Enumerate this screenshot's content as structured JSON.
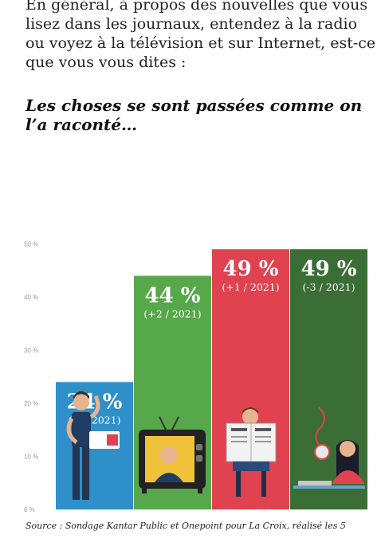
{
  "header": {
    "question": "En général, à propos des nouvelles que vous lisez dans les journaux, entendez à la radio ou voyez à la télévision et sur Internet, est-ce que vous vous dites :",
    "statement": "Les choses se sont passées comme on l’a raconté…"
  },
  "chart_data": {
    "type": "bar",
    "categories": [
      "Radio",
      "Télévision",
      "Journaux",
      "Internet"
    ],
    "values": [
      24,
      44,
      49,
      49
    ],
    "value_labels": [
      "24 %",
      "44 %",
      "49 %",
      "49 %"
    ],
    "change_labels": [
      "(-4 / 2021)",
      "(+2 / 2021)",
      "(+1 / 2021)",
      "(-3 / 2021)"
    ],
    "colors": [
      "#2f8fc9",
      "#57a84a",
      "#e0424f",
      "#3b6e35"
    ],
    "y_ticks": [
      0,
      10,
      20,
      30,
      40,
      50
    ],
    "y_tick_labels": [
      "0 %",
      "10 %",
      "20 %",
      "30 %",
      "40 %",
      "50 %"
    ],
    "grid": false,
    "legend": "none",
    "icons": [
      "person-phone-icon",
      "tv-presenter-icon",
      "newspaper-reader-icon",
      "woman-laptop-icon"
    ]
  },
  "footer": {
    "source": "Source : Sondage Kantar Public et Onepoint pour La Croix, réalisé les 5"
  }
}
